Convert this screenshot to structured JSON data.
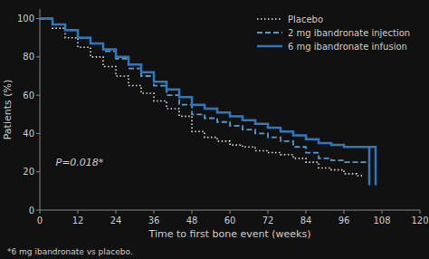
{
  "chart_data": {
    "type": "step",
    "xlabel": "Time to first bone event (weeks)",
    "ylabel": "Patients (%)",
    "footnote": "*6 mg ibandronate vs placebo.",
    "annotations": [
      {
        "text": "P=0.018*",
        "x": 5,
        "y": 23
      }
    ],
    "xlim": [
      0,
      120
    ],
    "ylim": [
      0,
      105
    ],
    "xticks": [
      0,
      12,
      24,
      36,
      48,
      60,
      72,
      84,
      96,
      108,
      120
    ],
    "yticks": [
      0,
      20,
      40,
      60,
      80,
      100
    ],
    "grid": false,
    "legend": "upper right",
    "series": [
      {
        "name": "Placebo",
        "color": "#dddddd",
        "line_style": "dotted",
        "x": [
          0,
          4,
          8,
          12,
          16,
          20,
          24,
          28,
          32,
          36,
          40,
          44,
          48,
          52,
          56,
          60,
          64,
          68,
          72,
          76,
          80,
          84,
          88,
          92,
          96,
          100,
          102
        ],
        "values": [
          100,
          95,
          90,
          85,
          80,
          75,
          70,
          65,
          61,
          57,
          53,
          49,
          41,
          38,
          36,
          34,
          33,
          31,
          30,
          29,
          27,
          25,
          22,
          21,
          19,
          18,
          18
        ]
      },
      {
        "name": "2 mg ibandronate injection",
        "color": "#5599cc",
        "line_style": "dashed",
        "x": [
          0,
          4,
          8,
          12,
          16,
          20,
          24,
          28,
          32,
          36,
          40,
          44,
          48,
          52,
          56,
          60,
          64,
          68,
          72,
          76,
          80,
          84,
          88,
          92,
          96,
          100,
          104
        ],
        "values": [
          100,
          97,
          94,
          90,
          87,
          83,
          79,
          74,
          70,
          65,
          60,
          55,
          50,
          48,
          46,
          44,
          42,
          40,
          38,
          36,
          33,
          30,
          27,
          26,
          25,
          25,
          25
        ]
      },
      {
        "name": "6 mg ibandronate infusion",
        "color": "#3377bb",
        "line_style": "solid",
        "x": [
          0,
          4,
          8,
          12,
          16,
          20,
          24,
          28,
          32,
          36,
          40,
          44,
          48,
          52,
          56,
          60,
          64,
          68,
          72,
          76,
          80,
          84,
          88,
          92,
          96,
          100,
          104,
          106
        ],
        "values": [
          100,
          97,
          94,
          90,
          87,
          84,
          80,
          76,
          72,
          67,
          63,
          59,
          55,
          53,
          51,
          49,
          47,
          45,
          43,
          41,
          39,
          37,
          35,
          34,
          33,
          33,
          33,
          13
        ]
      }
    ]
  }
}
